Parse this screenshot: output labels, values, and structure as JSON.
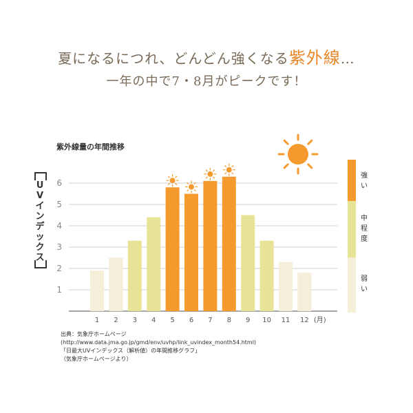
{
  "headline": {
    "line1_prefix": "夏になるにつれ、どんどん強くなる",
    "line1_accent": "紫外線",
    "line1_suffix": "…",
    "line2": "一年の中で7・8月がピークです！"
  },
  "source": {
    "line1": "出典：気象庁ホームページ",
    "line2": "(http://www.data.jma.go.jp/gmd/env/uvhp/link_uvindex_month54.html)",
    "line3": "「日最大UVインデックス（解析値）の年間推移グラフ」",
    "line4": "（気象庁ホームページより）"
  },
  "legend": {
    "strong": "強い",
    "medium": "中程度",
    "weak": "弱い"
  },
  "colors": {
    "weak": "#f5eed8",
    "medium": "#e8e497",
    "strong": "#f59a2c",
    "sun": "#f59a2c",
    "grid": "#d0d0d0"
  },
  "icons": [
    "sun-icon"
  ],
  "chart_data": {
    "type": "bar",
    "title": "紫外線量の年間推移",
    "ylabel": "UVインデックス",
    "xunit": "(月)",
    "categories": [
      "1",
      "2",
      "3",
      "4",
      "5",
      "6",
      "7",
      "8",
      "9",
      "10",
      "11",
      "12"
    ],
    "values": [
      1.9,
      2.5,
      3.3,
      4.4,
      5.8,
      5.5,
      6.1,
      6.3,
      4.5,
      3.3,
      2.3,
      1.8
    ],
    "levels": [
      "weak",
      "weak",
      "medium",
      "medium",
      "strong",
      "strong",
      "strong",
      "strong",
      "medium",
      "medium",
      "weak",
      "weak"
    ],
    "sun_markers": [
      "5",
      "6",
      "7",
      "8"
    ],
    "yticks": [
      1,
      2,
      3,
      4,
      5,
      6
    ],
    "ylim": [
      0,
      6.5
    ],
    "grid": true
  }
}
